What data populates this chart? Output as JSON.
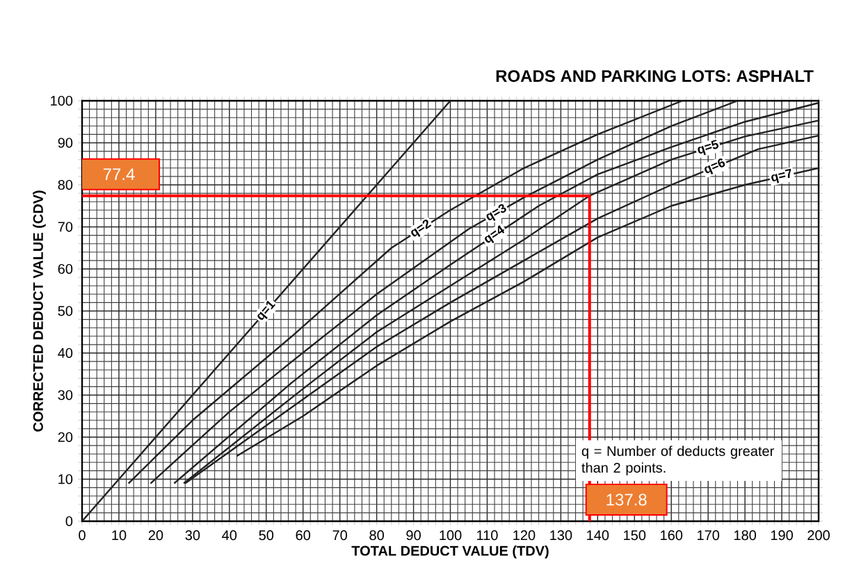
{
  "chart_data": {
    "type": "line",
    "title": "ROADS AND PARKING LOTS:  ASPHALT",
    "xlabel": "TOTAL DEDUCT VALUE (TDV)",
    "ylabel": "CORRECTED DEDUCT VALUE (CDV)",
    "xlim": [
      0,
      200
    ],
    "ylim": [
      0,
      100
    ],
    "xticks": [
      0,
      10,
      20,
      30,
      40,
      50,
      60,
      70,
      80,
      90,
      100,
      110,
      120,
      130,
      140,
      150,
      160,
      170,
      180,
      190,
      200
    ],
    "yticks": [
      0,
      10,
      20,
      30,
      40,
      50,
      60,
      70,
      80,
      90,
      100
    ],
    "grid": true,
    "marker": "none",
    "series": [
      {
        "name": "q=1",
        "color": "#222222",
        "x": [
          0,
          100
        ],
        "values": [
          0,
          100
        ]
      },
      {
        "name": "q=2",
        "color": "#222222",
        "x": [
          12.6,
          30,
          57,
          84,
          100,
          120,
          140,
          163
        ],
        "values": [
          9,
          24,
          44,
          65,
          74,
          84,
          92,
          100
        ]
      },
      {
        "name": "q=3",
        "color": "#222222",
        "x": [
          18.6,
          40,
          57,
          80,
          105,
          120,
          140,
          160,
          178
        ],
        "values": [
          9,
          26,
          38,
          54,
          69.5,
          77,
          86,
          94,
          100
        ]
      },
      {
        "name": "q=4",
        "color": "#222222",
        "x": [
          25,
          57,
          80,
          100,
          124,
          140,
          160,
          180,
          200
        ],
        "values": [
          9,
          33,
          49,
          61,
          75,
          82.5,
          89,
          95,
          99.5
        ]
      },
      {
        "name": "q=5",
        "color": "#222222",
        "x": [
          27.6,
          60,
          80,
          100,
          120,
          137.8,
          160,
          180,
          200
        ],
        "values": [
          9,
          31.5,
          45,
          56,
          67,
          77.4,
          86,
          91.5,
          95.3
        ]
      },
      {
        "name": "q=6",
        "color": "#222222",
        "x": [
          28,
          60,
          80,
          100,
          120,
          140,
          160,
          183.6,
          200
        ],
        "values": [
          9,
          29,
          41.5,
          52,
          62,
          72,
          80,
          88.5,
          91.7
        ]
      },
      {
        "name": "q=7",
        "color": "#222222",
        "x": [
          42,
          60,
          80,
          100,
          120,
          140,
          160,
          180,
          200
        ],
        "values": [
          15.5,
          25,
          37,
          47.5,
          57,
          67.5,
          75,
          80,
          84
        ]
      },
      {
        "type": "line",
        "color": "#ff0000",
        "x": [
          137.8,
          137.8,
          0
        ],
        "values": [
          0,
          77.4,
          77.4
        ]
      }
    ],
    "annotations": [
      {
        "text": "77.4",
        "x": 0,
        "y": 77.4
      },
      {
        "text": "137.8",
        "x": 137.8,
        "y": 0
      },
      "q = Number of deducts greater than 2 points."
    ]
  }
}
